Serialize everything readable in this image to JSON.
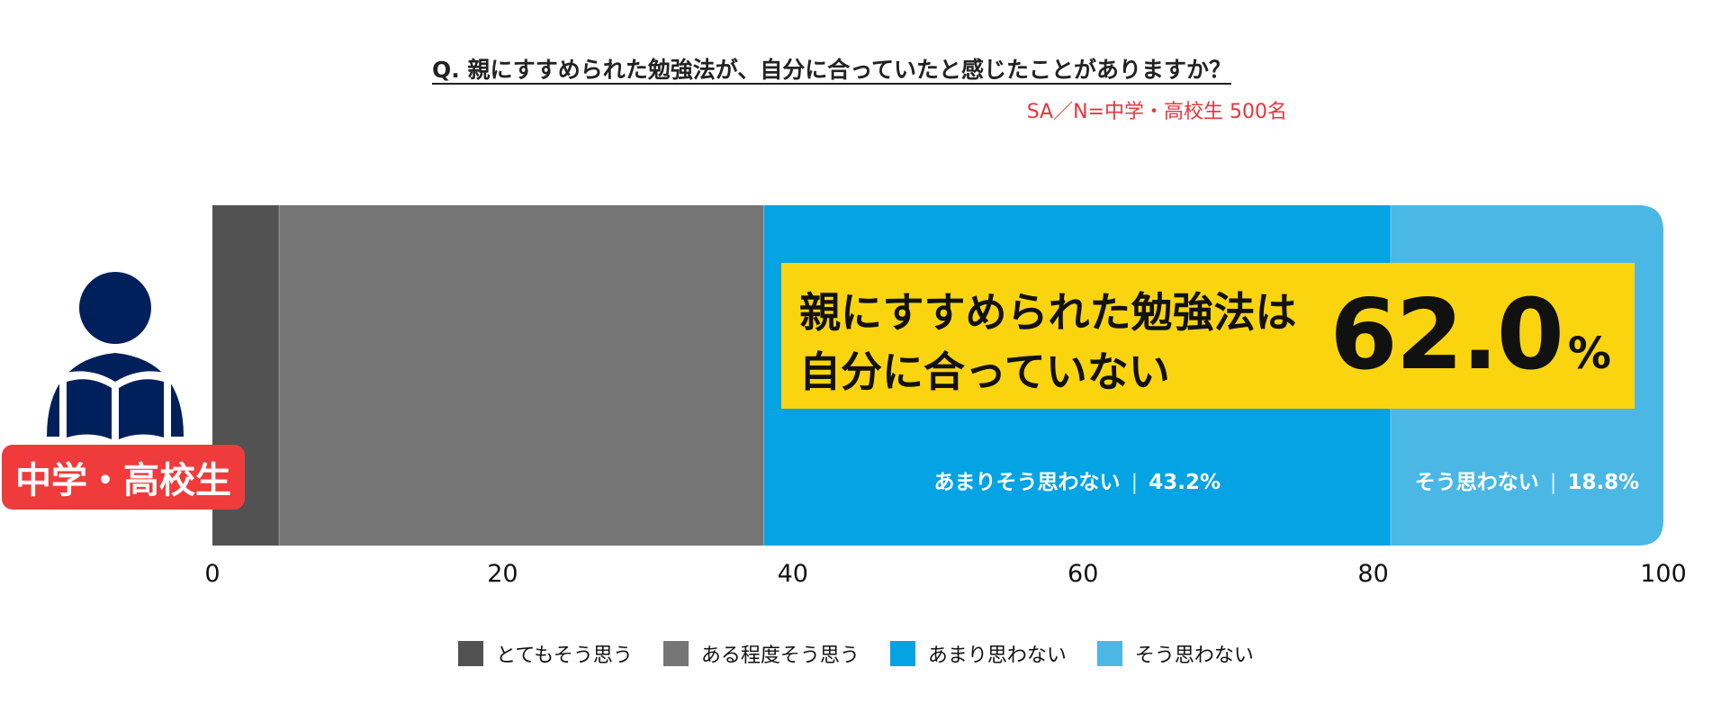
{
  "question": "Q. 親にすすめられた勉強法が、自分に合っていたと感じたことがありますか？",
  "sample": "SA／N=中学・高校生 500名",
  "respondent_badge": "中学・高校生",
  "callout": {
    "line1": "親にすすめられた勉強法は",
    "line2": "自分に合っていない",
    "value": "62.0",
    "unit": "%"
  },
  "colors": {
    "very_much": "#525252",
    "somewhat": "#757575",
    "not_much": "#03a3e4",
    "not_at_all": "#4bb7e5",
    "callout_bg": "#fad40e",
    "badge_bg": "#ef3b3b",
    "icon": "#00205b"
  },
  "icons": [
    "person-reading-icon"
  ],
  "chart_data": {
    "type": "bar",
    "orientation": "horizontal-stacked",
    "categories": [
      "中学・高校生"
    ],
    "series": [
      {
        "name": "とてもそう思う",
        "values": [
          4.6
        ]
      },
      {
        "name": "ある程度そう思う",
        "values": [
          33.4
        ]
      },
      {
        "name": "あまり思わない",
        "values": [
          43.2
        ]
      },
      {
        "name": "そう思わない",
        "values": [
          18.8
        ]
      }
    ],
    "data_labels": [
      {
        "series": "あまり思わない",
        "text": "あまりそう思わない",
        "value": "43.2%"
      },
      {
        "series": "そう思わない",
        "text": "そう思わない",
        "value": "18.8%"
      }
    ],
    "xlim": [
      0,
      100
    ],
    "xticks": [
      0,
      20,
      40,
      60,
      80,
      100
    ],
    "grid": false,
    "legend": "bottom"
  }
}
